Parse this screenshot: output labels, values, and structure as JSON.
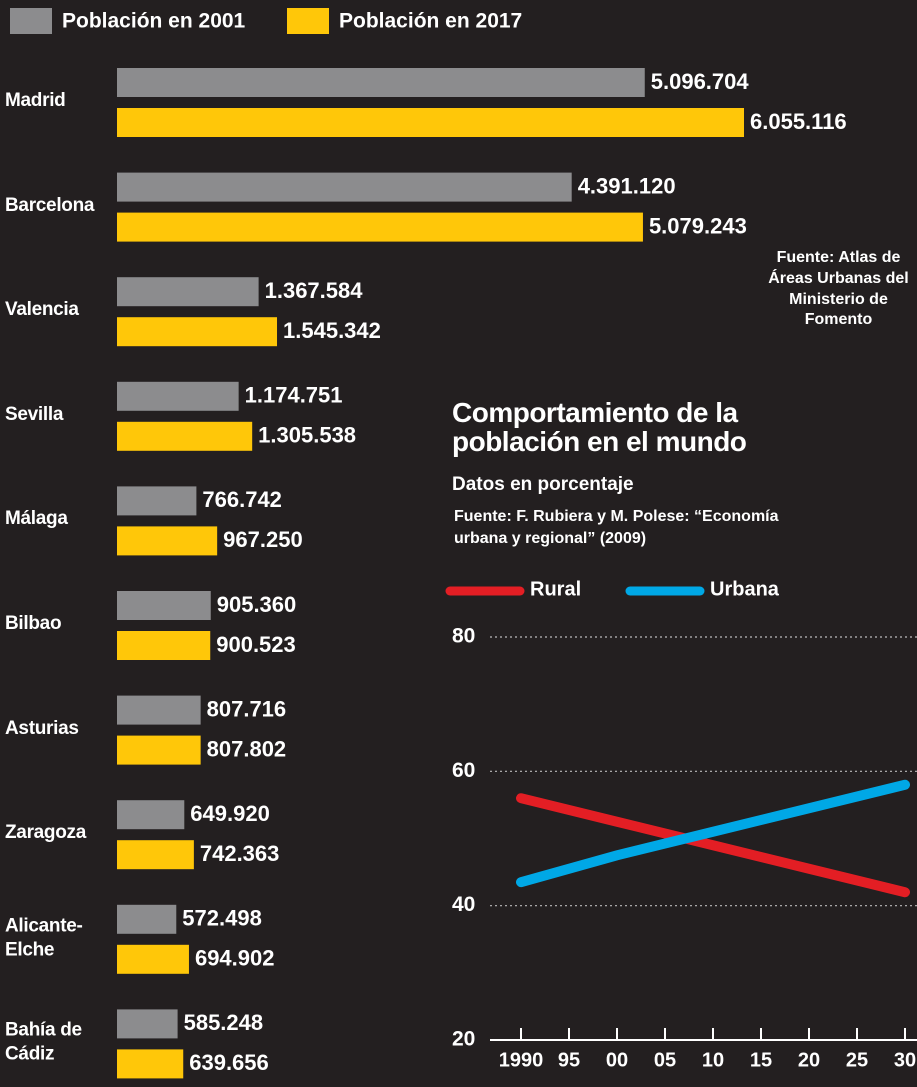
{
  "chart_data": [
    {
      "type": "bar",
      "orientation": "horizontal",
      "categories": [
        "Madrid",
        "Barcelona",
        "Valencia",
        "Sevilla",
        "Málaga",
        "Bilbao",
        "Asturias",
        "Zaragoza",
        "Alicante-Elche",
        "Bahía de Cádiz"
      ],
      "series": [
        {
          "name": "Población en 2001",
          "color": "#8c8c8e",
          "values": [
            5096704,
            4391120,
            1367584,
            1174751,
            766742,
            905360,
            807716,
            649920,
            572498,
            585248
          ],
          "value_labels": [
            "5.096.704",
            "4.391.120",
            "1.367.584",
            "1.174.751",
            "766.742",
            "905.360",
            "807.716",
            "649.920",
            "572.498",
            "585.248"
          ]
        },
        {
          "name": "Población en 2017",
          "color": "#ffc709",
          "values": [
            6055116,
            5079243,
            1545342,
            1305538,
            967250,
            900523,
            807802,
            742363,
            694902,
            639656
          ],
          "value_labels": [
            "6.055.116",
            "5.079.243",
            "1.545.342",
            "1.305.538",
            "967.250",
            "900.523",
            "807.802",
            "742.363",
            "694.902",
            "639.656"
          ]
        }
      ],
      "source": "Fuente: Atlas de Áreas Urbanas del Ministerio de Fomento"
    },
    {
      "type": "line",
      "title": "Comportamiento de la población en el mundo",
      "subtitle": "Datos en porcentaje",
      "source": "Fuente: F. Rubiera y M. Polese: “Economía urbana y regional” (2009)",
      "x": [
        1990,
        2000,
        2010,
        2020,
        2030
      ],
      "series": [
        {
          "name": "Rural",
          "color": "#e31e24",
          "values": [
            56,
            52.5,
            49,
            45.5,
            42
          ]
        },
        {
          "name": "Urbana",
          "color": "#00a8e6",
          "values": [
            43.5,
            47.5,
            51,
            54.5,
            58
          ]
        }
      ],
      "xlim": [
        1990,
        2030
      ],
      "xticks": [
        1990,
        {
          "value": 1995,
          "label": "95"
        },
        {
          "value": 2000,
          "label": "00"
        },
        {
          "value": 2005,
          "label": "05"
        },
        {
          "value": 2010,
          "label": "10"
        },
        {
          "value": 2015,
          "label": "15"
        },
        {
          "value": 2020,
          "label": "20"
        },
        {
          "value": 2025,
          "label": "25"
        },
        {
          "value": 2030,
          "label": "30"
        }
      ],
      "ylim": [
        20,
        80
      ],
      "yticks": [
        20,
        40,
        60,
        80
      ],
      "grid": true
    }
  ]
}
